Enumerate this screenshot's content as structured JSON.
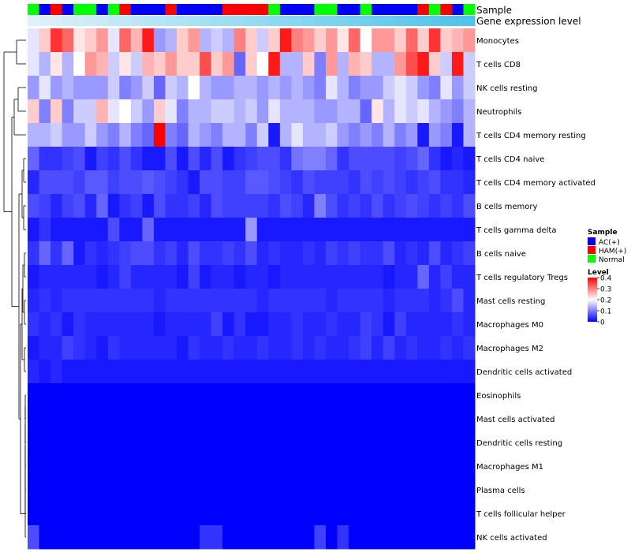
{
  "chart_data": {
    "type": "heatmap",
    "title": "",
    "annotation_rows": [
      "Sample",
      "Gene expression level"
    ],
    "rows": [
      "Monocytes",
      "T cells CD8",
      "NK cells resting",
      "Neutrophils",
      "T cells CD4 memory resting",
      "T cells CD4 naive",
      "T cells CD4 memory activated",
      "B cells memory",
      "T cells gamma delta",
      "B cells naive",
      "T cells regulatory  Tregs",
      "Mast cells resting",
      "Macrophages M0",
      "Macrophages M2",
      "Dendritic cells activated",
      "Eosinophils",
      "Mast cells activated",
      "Dendritic cells resting",
      "Macrophages M1",
      "Plasma cells",
      "T cells follicular helper",
      "NK cells activated"
    ],
    "sample_groups": [
      "Normal",
      "AC(+)",
      "HAM(+)",
      "AC(+)",
      "Normal",
      "Normal",
      "AC(+)",
      "Normal",
      "HAM(+)",
      "AC(+)",
      "AC(+)",
      "AC(+)",
      "HAM(+)",
      "AC(+)",
      "AC(+)",
      "AC(+)",
      "AC(+)",
      "HAM(+)",
      "HAM(+)",
      "HAM(+)",
      "HAM(+)",
      "Normal",
      "AC(+)",
      "AC(+)",
      "AC(+)",
      "Normal",
      "Normal",
      "AC(+)",
      "AC(+)",
      "Normal",
      "AC(+)",
      "AC(+)",
      "AC(+)",
      "AC(+)",
      "HAM(+)",
      "Normal",
      "HAM(+)",
      "AC(+)",
      "Normal"
    ],
    "values": [
      [
        0.18,
        0.24,
        0.36,
        0.32,
        0.22,
        0.24,
        0.28,
        0.18,
        0.32,
        0.26,
        0.38,
        0.12,
        0.14,
        0.24,
        0.28,
        0.14,
        0.16,
        0.14,
        0.3,
        0.24,
        0.16,
        0.24,
        0.38,
        0.3,
        0.28,
        0.24,
        0.28,
        0.22,
        0.32,
        0.2,
        0.28,
        0.28,
        0.24,
        0.32,
        0.24,
        0.36,
        0.24,
        0.26,
        0.28
      ],
      [
        0.18,
        0.14,
        0.22,
        0.14,
        0.2,
        0.28,
        0.26,
        0.16,
        0.22,
        0.16,
        0.26,
        0.24,
        0.28,
        0.24,
        0.24,
        0.34,
        0.24,
        0.28,
        0.08,
        0.24,
        0.2,
        0.38,
        0.14,
        0.14,
        0.24,
        0.1,
        0.28,
        0.14,
        0.26,
        0.24,
        0.14,
        0.14,
        0.28,
        0.34,
        0.38,
        0.24,
        0.16,
        0.38,
        0.16
      ],
      [
        0.12,
        0.18,
        0.12,
        0.14,
        0.12,
        0.12,
        0.12,
        0.16,
        0.1,
        0.12,
        0.16,
        0.08,
        0.16,
        0.14,
        0.2,
        0.14,
        0.12,
        0.12,
        0.14,
        0.14,
        0.12,
        0.14,
        0.12,
        0.14,
        0.12,
        0.1,
        0.18,
        0.14,
        0.1,
        0.12,
        0.12,
        0.16,
        0.18,
        0.16,
        0.12,
        0.1,
        0.18,
        0.12,
        0.16
      ],
      [
        0.24,
        0.1,
        0.24,
        0.1,
        0.16,
        0.16,
        0.26,
        0.18,
        0.2,
        0.16,
        0.12,
        0.24,
        0.18,
        0.1,
        0.14,
        0.14,
        0.16,
        0.16,
        0.14,
        0.16,
        0.12,
        0.18,
        0.14,
        0.14,
        0.14,
        0.12,
        0.12,
        0.14,
        0.14,
        0.08,
        0.22,
        0.14,
        0.18,
        0.16,
        0.18,
        0.14,
        0.12,
        0.1,
        0.14
      ],
      [
        0.14,
        0.14,
        0.16,
        0.12,
        0.12,
        0.16,
        0.12,
        0.1,
        0.14,
        0.1,
        0.08,
        0.4,
        0.1,
        0.08,
        0.14,
        0.12,
        0.1,
        0.14,
        0.14,
        0.1,
        0.16,
        0.02,
        0.14,
        0.18,
        0.14,
        0.14,
        0.16,
        0.12,
        0.1,
        0.12,
        0.1,
        0.14,
        0.1,
        0.12,
        0.02,
        0.12,
        0.1,
        0.02,
        0.14
      ],
      [
        0.08,
        0.04,
        0.04,
        0.05,
        0.06,
        0.02,
        0.05,
        0.04,
        0.06,
        0.04,
        0.02,
        0.02,
        0.06,
        0.02,
        0.06,
        0.03,
        0.06,
        0.02,
        0.04,
        0.05,
        0.06,
        0.06,
        0.04,
        0.09,
        0.1,
        0.1,
        0.08,
        0.04,
        0.06,
        0.06,
        0.06,
        0.06,
        0.05,
        0.06,
        0.08,
        0.04,
        0.02,
        0.03,
        0.02
      ],
      [
        0.03,
        0.06,
        0.06,
        0.06,
        0.05,
        0.07,
        0.07,
        0.05,
        0.06,
        0.06,
        0.07,
        0.06,
        0.05,
        0.04,
        0.02,
        0.06,
        0.06,
        0.05,
        0.05,
        0.07,
        0.07,
        0.06,
        0.05,
        0.04,
        0.06,
        0.05,
        0.05,
        0.05,
        0.04,
        0.06,
        0.05,
        0.06,
        0.05,
        0.04,
        0.05,
        0.06,
        0.04,
        0.04,
        0.03
      ],
      [
        0.06,
        0.05,
        0.03,
        0.05,
        0.06,
        0.03,
        0.08,
        0.02,
        0.04,
        0.05,
        0.02,
        0.06,
        0.04,
        0.04,
        0.05,
        0.03,
        0.06,
        0.05,
        0.05,
        0.05,
        0.05,
        0.04,
        0.06,
        0.05,
        0.03,
        0.1,
        0.06,
        0.04,
        0.05,
        0.04,
        0.06,
        0.04,
        0.05,
        0.06,
        0.05,
        0.04,
        0.05,
        0.04,
        0.06
      ],
      [
        0.02,
        0.04,
        0.02,
        0.02,
        0.02,
        0.02,
        0.02,
        0.06,
        0.02,
        0.02,
        0.08,
        0.02,
        0.02,
        0.02,
        0.02,
        0.02,
        0.02,
        0.02,
        0.02,
        0.12,
        0.02,
        0.02,
        0.02,
        0.02,
        0.02,
        0.02,
        0.02,
        0.02,
        0.02,
        0.02,
        0.02,
        0.02,
        0.02,
        0.02,
        0.02,
        0.02,
        0.02,
        0.02,
        0.02
      ],
      [
        0.04,
        0.08,
        0.04,
        0.08,
        0.02,
        0.04,
        0.03,
        0.04,
        0.05,
        0.06,
        0.06,
        0.04,
        0.05,
        0.03,
        0.06,
        0.04,
        0.04,
        0.05,
        0.04,
        0.06,
        0.03,
        0.04,
        0.03,
        0.03,
        0.04,
        0.03,
        0.05,
        0.04,
        0.05,
        0.04,
        0.04,
        0.06,
        0.03,
        0.04,
        0.03,
        0.06,
        0.03,
        0.04,
        0.05
      ],
      [
        0.02,
        0.03,
        0.03,
        0.03,
        0.03,
        0.03,
        0.02,
        0.03,
        0.05,
        0.03,
        0.03,
        0.03,
        0.03,
        0.02,
        0.05,
        0.02,
        0.03,
        0.03,
        0.02,
        0.03,
        0.03,
        0.02,
        0.03,
        0.03,
        0.03,
        0.03,
        0.03,
        0.03,
        0.03,
        0.03,
        0.03,
        0.02,
        0.03,
        0.03,
        0.08,
        0.03,
        0.05,
        0.03,
        0.03
      ],
      [
        0.03,
        0.04,
        0.03,
        0.04,
        0.04,
        0.04,
        0.04,
        0.04,
        0.04,
        0.04,
        0.04,
        0.03,
        0.04,
        0.04,
        0.04,
        0.04,
        0.04,
        0.04,
        0.04,
        0.04,
        0.03,
        0.04,
        0.04,
        0.04,
        0.04,
        0.04,
        0.03,
        0.04,
        0.04,
        0.04,
        0.04,
        0.03,
        0.04,
        0.04,
        0.04,
        0.03,
        0.04,
        0.06,
        0.03
      ],
      [
        0.04,
        0.03,
        0.04,
        0.02,
        0.04,
        0.03,
        0.03,
        0.03,
        0.03,
        0.03,
        0.03,
        0.02,
        0.03,
        0.03,
        0.03,
        0.03,
        0.05,
        0.02,
        0.04,
        0.02,
        0.02,
        0.03,
        0.03,
        0.04,
        0.03,
        0.03,
        0.04,
        0.03,
        0.03,
        0.05,
        0.04,
        0.02,
        0.05,
        0.03,
        0.03,
        0.03,
        0.03,
        0.04,
        0.03
      ],
      [
        0.02,
        0.03,
        0.03,
        0.05,
        0.04,
        0.03,
        0.02,
        0.04,
        0.03,
        0.03,
        0.03,
        0.03,
        0.03,
        0.02,
        0.04,
        0.03,
        0.03,
        0.04,
        0.03,
        0.03,
        0.04,
        0.03,
        0.03,
        0.04,
        0.03,
        0.04,
        0.03,
        0.03,
        0.04,
        0.05,
        0.03,
        0.05,
        0.03,
        0.04,
        0.03,
        0.03,
        0.04,
        0.03,
        0.04
      ],
      [
        0.03,
        0.02,
        0.03,
        0.02,
        0.02,
        0.02,
        0.02,
        0.02,
        0.02,
        0.02,
        0.02,
        0.02,
        0.02,
        0.02,
        0.02,
        0.02,
        0.02,
        0.02,
        0.02,
        0.02,
        0.02,
        0.02,
        0.02,
        0.02,
        0.02,
        0.02,
        0.02,
        0.02,
        0.02,
        0.02,
        0.02,
        0.02,
        0.02,
        0.02,
        0.02,
        0.02,
        0.02,
        0.02,
        0.02
      ],
      [
        0,
        0,
        0,
        0,
        0,
        0,
        0,
        0,
        0,
        0,
        0,
        0,
        0,
        0,
        0,
        0,
        0,
        0,
        0,
        0,
        0,
        0,
        0,
        0,
        0,
        0,
        0,
        0,
        0,
        0,
        0,
        0,
        0,
        0,
        0,
        0,
        0,
        0,
        0
      ],
      [
        0,
        0,
        0,
        0,
        0,
        0,
        0,
        0,
        0,
        0,
        0,
        0,
        0,
        0,
        0,
        0,
        0,
        0,
        0,
        0,
        0,
        0,
        0,
        0,
        0,
        0,
        0,
        0,
        0,
        0,
        0,
        0,
        0,
        0,
        0,
        0,
        0,
        0,
        0
      ],
      [
        0,
        0,
        0,
        0,
        0,
        0,
        0,
        0,
        0,
        0,
        0,
        0,
        0,
        0,
        0,
        0,
        0,
        0,
        0,
        0,
        0,
        0,
        0,
        0,
        0,
        0,
        0,
        0,
        0,
        0,
        0,
        0,
        0,
        0,
        0,
        0,
        0,
        0,
        0
      ],
      [
        0,
        0,
        0,
        0,
        0,
        0,
        0,
        0,
        0,
        0,
        0,
        0,
        0,
        0,
        0,
        0,
        0,
        0,
        0,
        0,
        0,
        0,
        0,
        0,
        0,
        0,
        0,
        0,
        0,
        0,
        0,
        0,
        0,
        0,
        0,
        0,
        0,
        0,
        0
      ],
      [
        0,
        0,
        0,
        0,
        0,
        0,
        0,
        0,
        0,
        0,
        0,
        0,
        0,
        0,
        0,
        0,
        0,
        0,
        0,
        0,
        0,
        0,
        0,
        0,
        0,
        0,
        0,
        0,
        0,
        0,
        0,
        0,
        0,
        0,
        0,
        0,
        0,
        0,
        0
      ],
      [
        0,
        0,
        0,
        0,
        0,
        0,
        0,
        0,
        0,
        0,
        0,
        0,
        0,
        0,
        0,
        0,
        0,
        0,
        0,
        0,
        0,
        0,
        0,
        0,
        0,
        0,
        0,
        0,
        0,
        0,
        0,
        0,
        0,
        0,
        0,
        0,
        0,
        0,
        0
      ],
      [
        0.06,
        0,
        0,
        0,
        0,
        0,
        0,
        0,
        0,
        0,
        0,
        0,
        0,
        0,
        0,
        0.04,
        0.04,
        0,
        0,
        0,
        0,
        0,
        0,
        0,
        0,
        0.05,
        0,
        0.04,
        0,
        0,
        0,
        0,
        0,
        0,
        0,
        0,
        0,
        0,
        0
      ]
    ],
    "value_range": [
      0,
      0.4
    ],
    "legend_sample": {
      "title": "Sample",
      "entries": [
        {
          "label": "AC(+)",
          "color": "#0000ff"
        },
        {
          "label": "HAM(+)",
          "color": "#ff0000"
        },
        {
          "label": "Normal",
          "color": "#00ff00"
        }
      ]
    },
    "legend_level": {
      "title": "Level",
      "ticks": [
        "0.4",
        "0.3",
        "0.2",
        "0.1",
        "0"
      ],
      "tick_values": [
        0.4,
        0.3,
        0.2,
        0.1,
        0
      ],
      "colors": {
        "low": "#0000ff",
        "mid": "#ffffff",
        "high": "#ff0000",
        "mid_value": 0.2
      }
    },
    "expression_bar_colors": {
      "low": "#dff2f9",
      "high": "#4fc3ea"
    }
  }
}
